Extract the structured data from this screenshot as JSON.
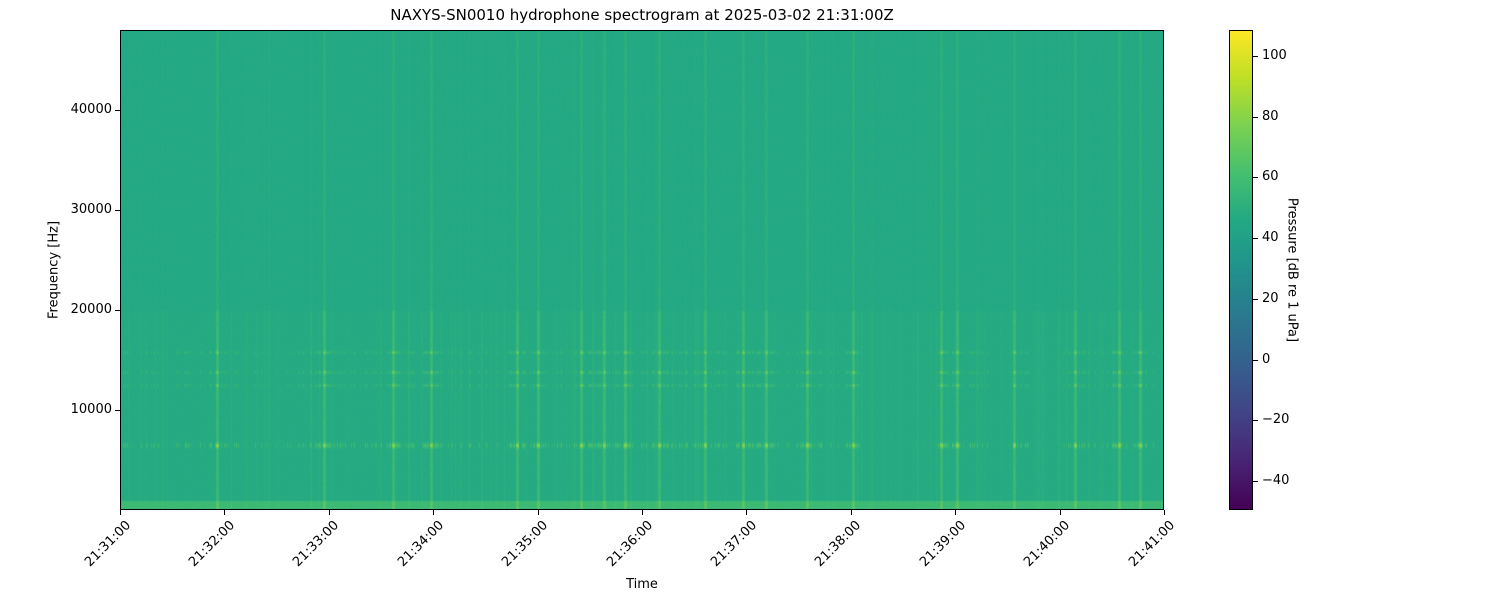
{
  "chart_data": {
    "type": "heatmap",
    "title": "NAXYS-SN0010 hydrophone spectrogram at 2025-03-02 21:31:00Z",
    "xlabel": "Time",
    "ylabel": "Frequency [Hz]",
    "xlim": [
      "21:31:00",
      "21:41:00"
    ],
    "x_ticks": [
      "21:31:00",
      "21:32:00",
      "21:33:00",
      "21:34:00",
      "21:35:00",
      "21:36:00",
      "21:37:00",
      "21:38:00",
      "21:39:00",
      "21:40:00",
      "21:41:00"
    ],
    "ylim": [
      0,
      48000
    ],
    "y_ticks": [
      10000,
      20000,
      30000,
      40000
    ],
    "grid": false,
    "colorbar": {
      "label": "Pressure [dB re 1 uPa]",
      "colormap": "viridis",
      "range": [
        -49.6,
        108.6
      ],
      "ticks": [
        -40,
        -20,
        0,
        20,
        40,
        60,
        80,
        100
      ]
    },
    "background_level_db": 47,
    "low_frequency_band": {
      "max_hz": 1000,
      "level_db": 56
    },
    "tonal_bands_hz": [
      6500,
      12500,
      13800,
      15800
    ],
    "broadband_event_times": [
      "21:31:56",
      "21:32:57",
      "21:33:37",
      "21:33:59",
      "21:34:48",
      "21:35:00",
      "21:35:25",
      "21:35:38",
      "21:35:50",
      "21:36:10",
      "21:36:36",
      "21:36:58",
      "21:37:11",
      "21:37:35",
      "21:38:01",
      "21:38:52",
      "21:39:01",
      "21:39:34",
      "21:40:09",
      "21:40:34",
      "21:40:46"
    ],
    "quiet_band_intervals": [
      [
        "21:38:05",
        "21:38:50"
      ],
      [
        "21:39:20",
        "21:39:32"
      ],
      [
        "21:39:45",
        "21:40:00"
      ]
    ]
  }
}
